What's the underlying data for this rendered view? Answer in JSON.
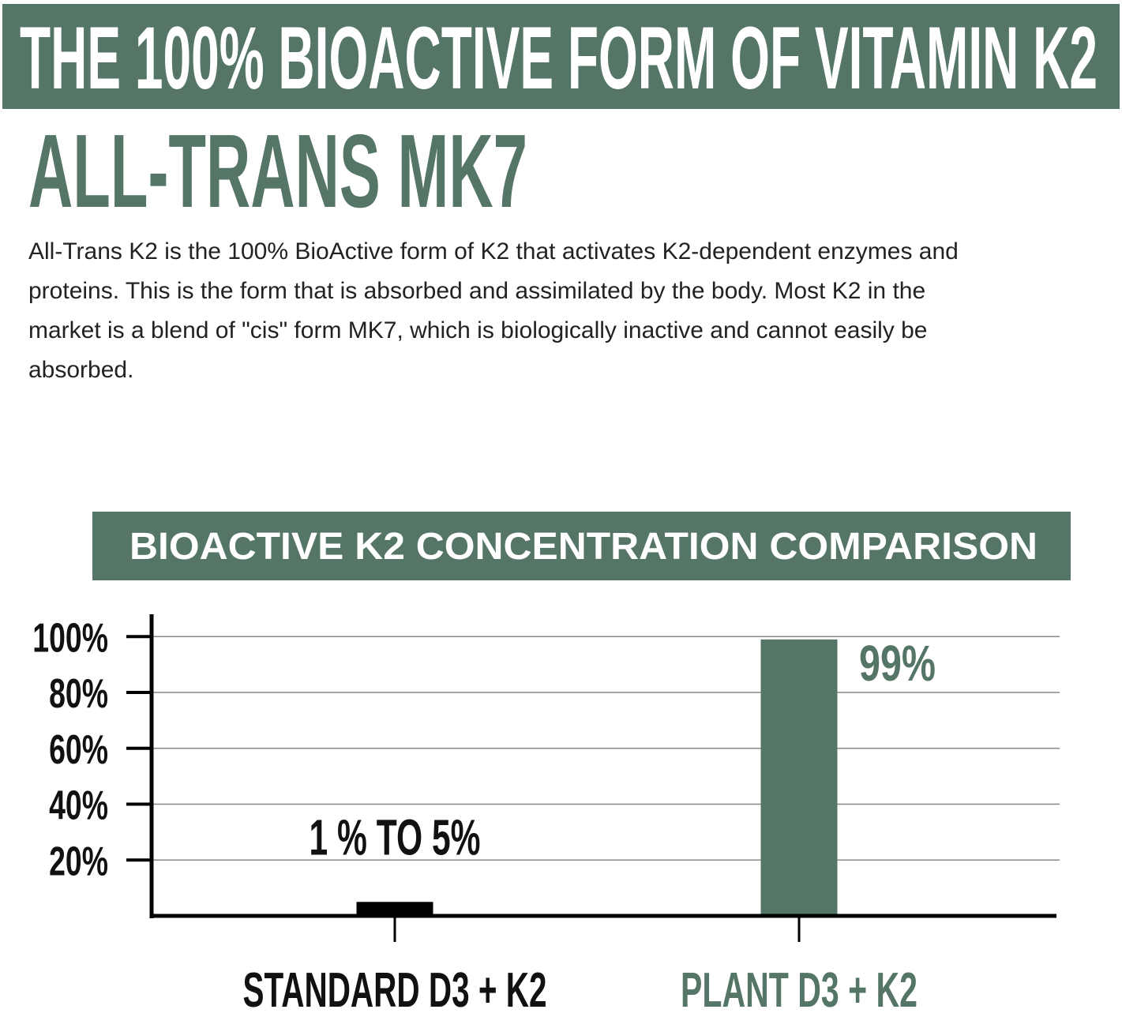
{
  "header": {
    "title": "THE 100% BIOACTIVE FORM OF VITAMIN K2",
    "subtitle": "ALL-TRANS MK7",
    "description": [
      "All-Trans K2 is the 100% BioActive form of K2 that activates K2-dependent enzymes and",
      "proteins. This is the form that is absorbed and assimilated by the body. Most K2 in the",
      "market is a blend of \"cis\" form MK7, which is biologically inactive and cannot easily be",
      "absorbed."
    ]
  },
  "chart_data": {
    "type": "bar",
    "title": "BIOACTIVE K2 CONCENTRATION COMPARISON",
    "categories": [
      "STANDARD D3 + K2",
      "PLANT D3 + K2"
    ],
    "values": [
      5,
      99
    ],
    "value_labels": [
      "1 % TO 5%",
      "99%"
    ],
    "colors": [
      "#000000",
      "#557566"
    ],
    "ylim": [
      0,
      108
    ],
    "yticks": [
      {
        "value": 20,
        "label": "20%"
      },
      {
        "value": 40,
        "label": "40%"
      },
      {
        "value": 60,
        "label": "60%"
      },
      {
        "value": 80,
        "label": "80%"
      },
      {
        "value": 100,
        "label": "100%"
      }
    ],
    "grid": true
  }
}
